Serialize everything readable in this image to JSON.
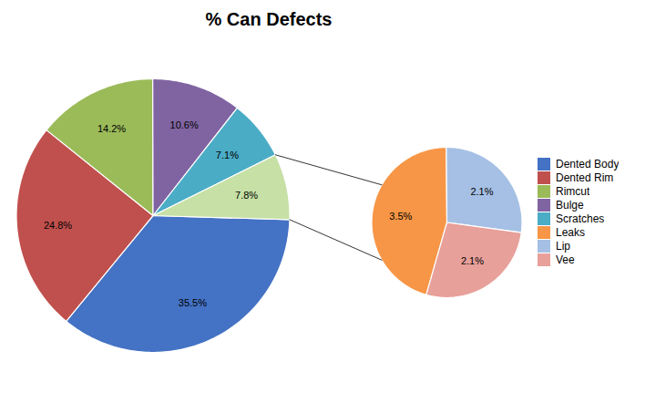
{
  "chart_data": [
    {
      "type": "pie",
      "title": "% Can Defects",
      "categories": [
        "Dented Body",
        "Dented Rim",
        "Rimcut",
        "Bulge",
        "Scratches",
        null
      ],
      "values": [
        35.5,
        24.8,
        14.2,
        10.6,
        7.1,
        7.8
      ],
      "value_labels": [
        "35.5%",
        "24.8%",
        "14.2%",
        "10.6%",
        "7.1%",
        "7.8%"
      ],
      "colors": [
        "#4472C4",
        "#C0504D",
        "#9BBB59",
        "#8064A2",
        "#4BACC6",
        "#C6E0A5"
      ],
      "data_labels": true,
      "legend": "right"
    },
    {
      "type": "pie",
      "categories": [
        "Leaks",
        "Lip",
        "Vee"
      ],
      "values": [
        3.5,
        2.1,
        2.1
      ],
      "value_labels": [
        "3.5%",
        "2.1%",
        "2.1%"
      ],
      "colors": [
        "#F79646",
        "#A5C0E4",
        "#E8A09A"
      ],
      "data_labels": true,
      "legend": "right"
    }
  ]
}
